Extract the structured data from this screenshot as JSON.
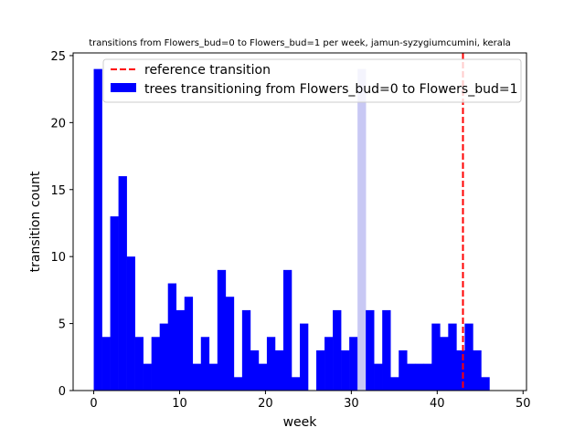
{
  "chart_data": {
    "type": "bar",
    "title": "transitions from Flowers_bud=0 to Flowers_bud=1 per week, jamun-syzygiumcumini, kerala",
    "xlabel": "week",
    "ylabel": "transition count",
    "xlim": [
      -2.4,
      50.4
    ],
    "ylim": [
      0,
      25.2
    ],
    "xticks": [
      0,
      10,
      20,
      30,
      40,
      50
    ],
    "yticks": [
      0,
      5,
      10,
      15,
      20,
      25
    ],
    "bin_edges_start": 0,
    "bin_width": 0.96,
    "series": [
      {
        "name": "trees transitioning from Flowers_bud=0 to Flowers_bud=1",
        "color": "#0000ff",
        "values": [
          24,
          4,
          13,
          16,
          10,
          4,
          2,
          4,
          5,
          8,
          6,
          7,
          2,
          4,
          2,
          9,
          7,
          1,
          6,
          3,
          2,
          4,
          3,
          9,
          1,
          5,
          0,
          3,
          4,
          6,
          3,
          4,
          24,
          6,
          2,
          6,
          1,
          3,
          2,
          2,
          2,
          5,
          4,
          5,
          3,
          5,
          3,
          1
        ]
      }
    ],
    "reference_line": {
      "name": "reference transition",
      "x": 43,
      "color": "#ff0000",
      "style": "dashed"
    },
    "highlight_bin_index": 32,
    "highlight_color": "#c8c8f4",
    "legend": {
      "placement": "top-right",
      "reference_label": "reference transition",
      "bars_label": "trees transitioning from Flowers_bud=0 to Flowers_bud=1"
    },
    "grid": false
  }
}
